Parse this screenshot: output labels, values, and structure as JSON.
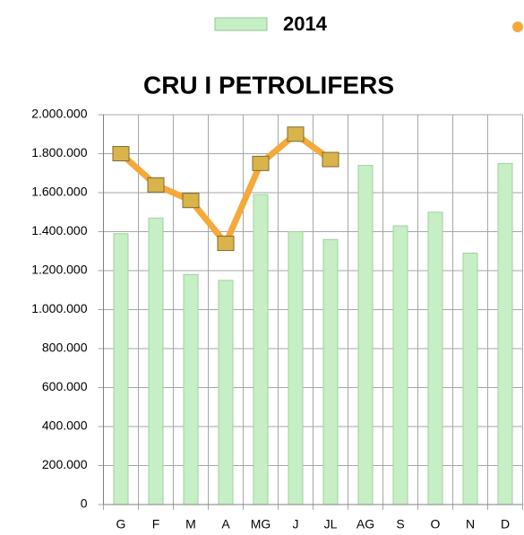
{
  "chart_data": {
    "type": "bar_line",
    "title": "CRU I PETROLIFERS",
    "categories": [
      "G",
      "F",
      "M",
      "A",
      "MG",
      "J",
      "JL",
      "AG",
      "S",
      "O",
      "N",
      "D"
    ],
    "series": [
      {
        "name": "2014",
        "type": "bar",
        "color": "#c6efc6",
        "values": [
          1390000,
          1470000,
          1180000,
          1150000,
          1590000,
          1400000,
          1360000,
          1740000,
          1430000,
          1500000,
          1290000,
          1750000
        ]
      },
      {
        "type": "line",
        "color": "#f5a93a",
        "values": [
          1800000,
          1640000,
          1560000,
          1340000,
          1750000,
          1900000,
          1770000,
          null,
          null,
          null,
          null,
          null
        ]
      }
    ],
    "ylim": [
      0,
      2000000
    ],
    "yticks": [
      0,
      {
        "value": 200000,
        "label": "200.000"
      },
      {
        "value": 400000,
        "label": "400.000"
      },
      {
        "value": 600000,
        "label": "600.000"
      },
      {
        "value": 800000,
        "label": "800.000"
      },
      {
        "value": 1000000,
        "label": "1.000.000"
      },
      {
        "value": 1200000,
        "label": "1.200.000"
      },
      {
        "value": 1400000,
        "label": "1.400.000"
      },
      {
        "value": 1600000,
        "label": "1.600.000"
      },
      {
        "value": 1800000,
        "label": "1.800.000"
      },
      {
        "value": 2000000,
        "label": "2.000.000"
      }
    ],
    "grid": true,
    "legend": "top"
  }
}
